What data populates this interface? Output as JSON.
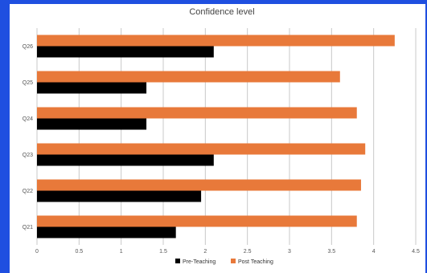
{
  "chart_data": {
    "type": "bar",
    "orientation": "horizontal",
    "title": "Confidence level",
    "categories": [
      "Q21",
      "Q22",
      "Q23",
      "Q24",
      "Q25",
      "Q26"
    ],
    "series": [
      {
        "name": "Pre-Teaching",
        "color": "#000000",
        "values": [
          1.65,
          1.95,
          2.1,
          1.3,
          1.3,
          2.1
        ]
      },
      {
        "name": "Post Teaching",
        "color": "#e8793a",
        "values": [
          3.8,
          3.85,
          3.9,
          3.8,
          3.6,
          4.25
        ]
      }
    ],
    "x_ticks": [
      "0",
      "0.5",
      "1",
      "1.5",
      "2",
      "2.5",
      "3",
      "3.5",
      "4",
      "4.5"
    ],
    "xlim": [
      0,
      4.5
    ],
    "grid": "vertical",
    "legend": "bottom"
  }
}
